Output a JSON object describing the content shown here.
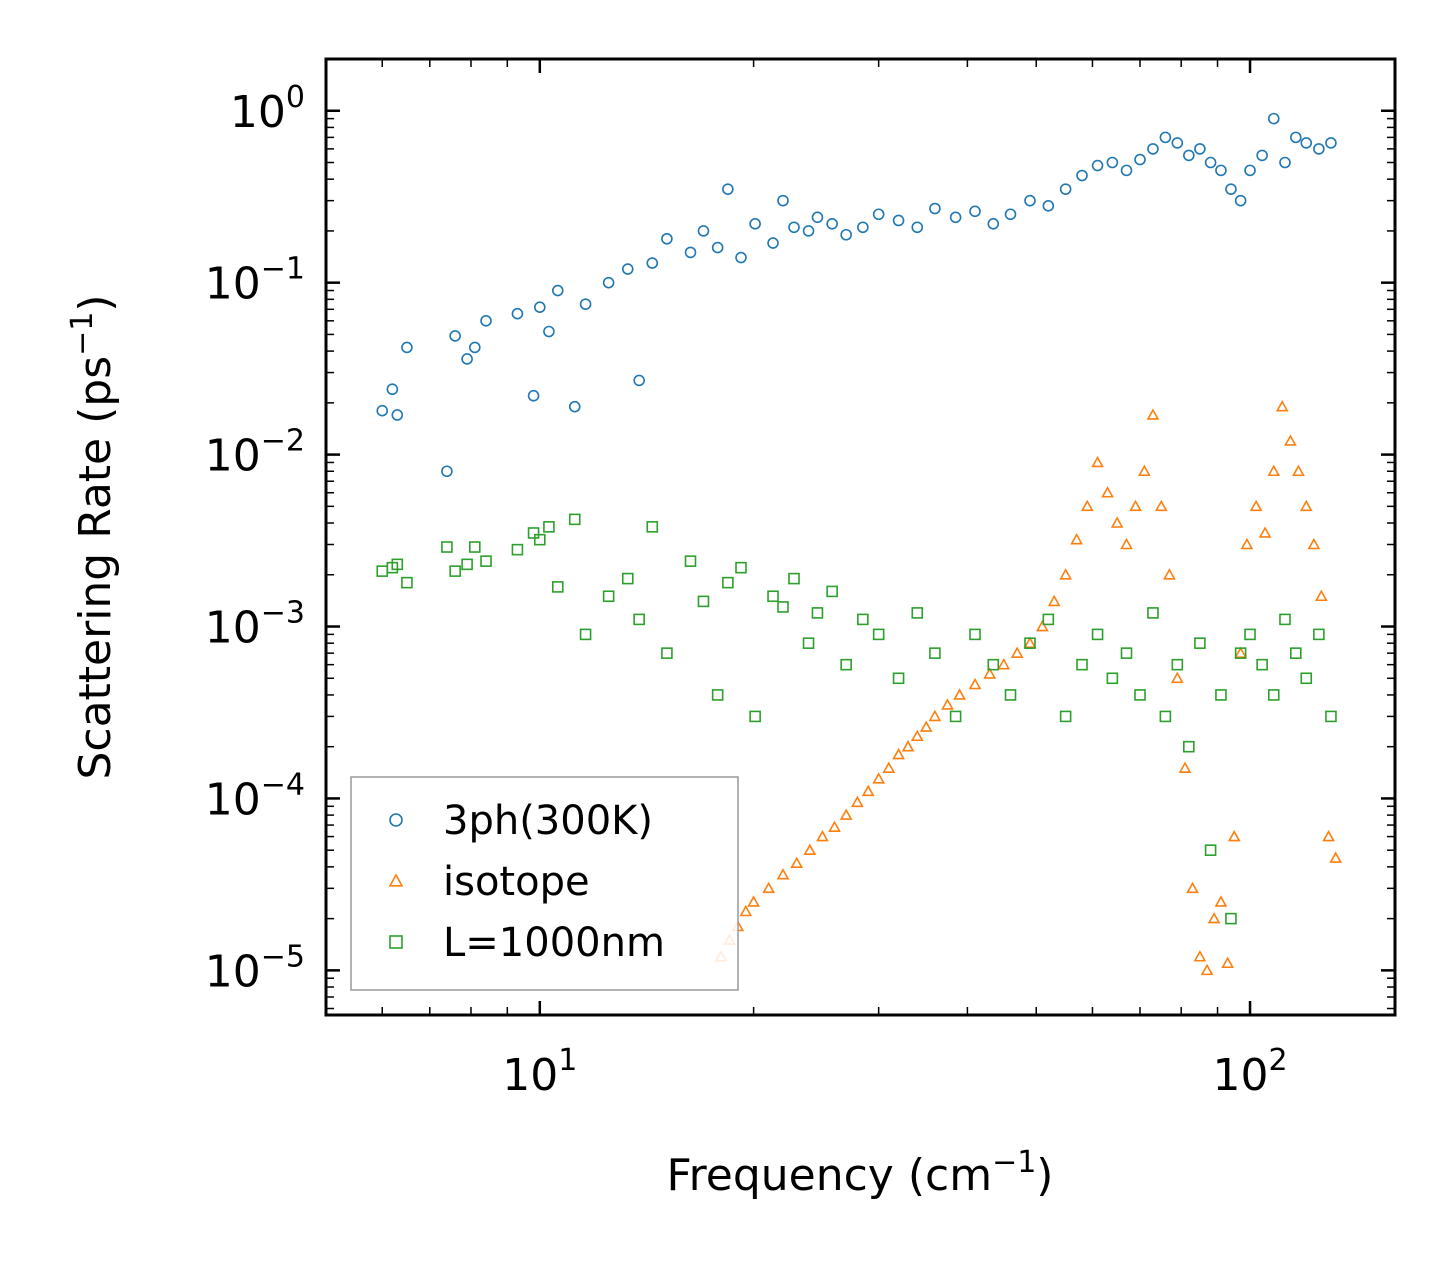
{
  "chart_data": {
    "type": "scatter",
    "xscale": "log",
    "yscale": "log",
    "xlim": [
      5,
      160
    ],
    "ylim": [
      5.5e-06,
      2.0
    ],
    "xlabel": "Frequency",
    "xlabel_unit_base": "cm",
    "xlabel_unit_exp": "−1",
    "ylabel": "Scattering Rate",
    "ylabel_unit_base": "ps",
    "ylabel_unit_exp": "−1",
    "x_ticks": [
      {
        "base": "10",
        "exp": "1",
        "value": 10
      },
      {
        "base": "10",
        "exp": "2",
        "value": 100
      }
    ],
    "y_ticks": [
      {
        "base": "10",
        "exp": "0",
        "value": 1
      },
      {
        "base": "10",
        "exp": "−1",
        "value": 0.1
      },
      {
        "base": "10",
        "exp": "−2",
        "value": 0.01
      },
      {
        "base": "10",
        "exp": "−3",
        "value": 0.001
      },
      {
        "base": "10",
        "exp": "−4",
        "value": 0.0001
      },
      {
        "base": "10",
        "exp": "−5",
        "value": 1e-05
      }
    ],
    "legend_position": "lower-left",
    "series": [
      {
        "name": "3ph(300K)",
        "marker": "circle",
        "color": "#1f77b4",
        "x": [
          6.0,
          6.2,
          6.3,
          6.5,
          7.4,
          7.6,
          7.9,
          8.1,
          8.4,
          9.3,
          9.8,
          10.0,
          10.3,
          10.6,
          11.2,
          11.6,
          12.5,
          13.3,
          13.8,
          14.4,
          15.1,
          16.3,
          17.0,
          17.8,
          18.4,
          19.2,
          20.1,
          21.3,
          22.0,
          22.8,
          23.9,
          24.6,
          25.8,
          27.0,
          28.5,
          30.0,
          32.0,
          34.0,
          36.0,
          38.5,
          41.0,
          43.5,
          46.0,
          49.0,
          52.0,
          55.0,
          58.0,
          61.0,
          64.0,
          67.0,
          70.0,
          73.0,
          76.0,
          79.0,
          82.0,
          85.0,
          88.0,
          91.0,
          94.0,
          97.0,
          100.0,
          104.0,
          108.0,
          112.0,
          116.0,
          120.0,
          125.0,
          130.0
        ],
        "y": [
          0.018,
          0.024,
          0.017,
          0.042,
          0.008,
          0.049,
          0.036,
          0.042,
          0.06,
          0.066,
          0.022,
          0.072,
          0.052,
          0.09,
          0.019,
          0.075,
          0.1,
          0.12,
          0.027,
          0.13,
          0.18,
          0.15,
          0.2,
          0.16,
          0.35,
          0.14,
          0.22,
          0.17,
          0.3,
          0.21,
          0.2,
          0.24,
          0.22,
          0.19,
          0.21,
          0.25,
          0.23,
          0.21,
          0.27,
          0.24,
          0.26,
          0.22,
          0.25,
          0.3,
          0.28,
          0.35,
          0.42,
          0.48,
          0.5,
          0.45,
          0.52,
          0.6,
          0.7,
          0.65,
          0.55,
          0.6,
          0.5,
          0.45,
          0.35,
          0.3,
          0.45,
          0.55,
          0.9,
          0.5,
          0.7,
          0.65,
          0.6,
          0.65
        ]
      },
      {
        "name": "isotope",
        "marker": "triangle",
        "color": "#ff7f0e",
        "x": [
          18.0,
          18.5,
          19.0,
          19.5,
          20.0,
          21.0,
          22.0,
          23.0,
          24.0,
          25.0,
          26.0,
          27.0,
          28.0,
          29.0,
          30.0,
          31.0,
          32.0,
          33.0,
          34.0,
          35.0,
          36.0,
          37.5,
          39.0,
          41.0,
          43.0,
          45.0,
          47.0,
          49.0,
          51.0,
          53.0,
          55.0,
          57.0,
          59.0,
          61.0,
          63.0,
          65.0,
          67.0,
          69.0,
          71.0,
          73.0,
          75.0,
          77.0,
          79.0,
          81.0,
          83.0,
          85.0,
          87.0,
          89.0,
          91.0,
          93.0,
          95.0,
          97.0,
          99.0,
          102.0,
          105.0,
          108.0,
          111.0,
          114.0,
          117.0,
          120.0,
          123.0,
          126.0,
          129.0,
          132.0
        ],
        "y": [
          1.2e-05,
          1.5e-05,
          1.8e-05,
          2.2e-05,
          2.5e-05,
          3e-05,
          3.6e-05,
          4.2e-05,
          5e-05,
          6e-05,
          6.8e-05,
          8e-05,
          9.5e-05,
          0.00011,
          0.00013,
          0.00015,
          0.00018,
          0.0002,
          0.00023,
          0.00026,
          0.0003,
          0.00035,
          0.0004,
          0.00046,
          0.00053,
          0.0006,
          0.0007,
          0.0008,
          0.001,
          0.0014,
          0.002,
          0.0032,
          0.005,
          0.009,
          0.006,
          0.004,
          0.003,
          0.005,
          0.008,
          0.017,
          0.005,
          0.002,
          0.0005,
          0.00015,
          3e-05,
          1.2e-05,
          1e-05,
          2e-05,
          2.5e-05,
          1.1e-05,
          6e-05,
          0.0007,
          0.003,
          0.005,
          0.0035,
          0.008,
          0.019,
          0.012,
          0.008,
          0.005,
          0.003,
          0.0015,
          6e-05,
          4.5e-05
        ]
      },
      {
        "name": "L=1000nm",
        "marker": "square",
        "color": "#2ca02c",
        "x": [
          6.0,
          6.2,
          6.3,
          6.5,
          7.4,
          7.6,
          7.9,
          8.1,
          8.4,
          9.3,
          9.8,
          10.0,
          10.3,
          10.6,
          11.2,
          11.6,
          12.5,
          13.3,
          13.8,
          14.4,
          15.1,
          16.3,
          17.0,
          17.8,
          18.4,
          19.2,
          20.1,
          21.3,
          22.0,
          22.8,
          23.9,
          24.6,
          25.8,
          27.0,
          28.5,
          30.0,
          32.0,
          34.0,
          36.0,
          38.5,
          41.0,
          43.5,
          46.0,
          49.0,
          52.0,
          55.0,
          58.0,
          61.0,
          64.0,
          67.0,
          70.0,
          73.0,
          76.0,
          79.0,
          82.0,
          85.0,
          88.0,
          91.0,
          94.0,
          97.0,
          100.0,
          104.0,
          108.0,
          112.0,
          116.0,
          120.0,
          125.0,
          130.0
        ],
        "y": [
          0.0021,
          0.0022,
          0.0023,
          0.0018,
          0.0029,
          0.0021,
          0.0023,
          0.0029,
          0.0024,
          0.0028,
          0.0035,
          0.0032,
          0.0038,
          0.0017,
          0.0042,
          0.0009,
          0.0015,
          0.0019,
          0.0011,
          0.0038,
          0.0007,
          0.0024,
          0.0014,
          0.0004,
          0.0018,
          0.0022,
          0.0003,
          0.0015,
          0.0013,
          0.0019,
          0.0008,
          0.0012,
          0.0016,
          0.0006,
          0.0011,
          0.0009,
          0.0005,
          0.0012,
          0.0007,
          0.0003,
          0.0009,
          0.0006,
          0.0004,
          0.0008,
          0.0011,
          0.0003,
          0.0006,
          0.0009,
          0.0005,
          0.0007,
          0.0004,
          0.0012,
          0.0003,
          0.0006,
          0.0002,
          0.0008,
          5e-05,
          0.0004,
          2e-05,
          0.0007,
          0.0009,
          0.0006,
          0.0004,
          0.0011,
          0.0007,
          0.0005,
          0.0009,
          0.0003
        ]
      }
    ]
  }
}
